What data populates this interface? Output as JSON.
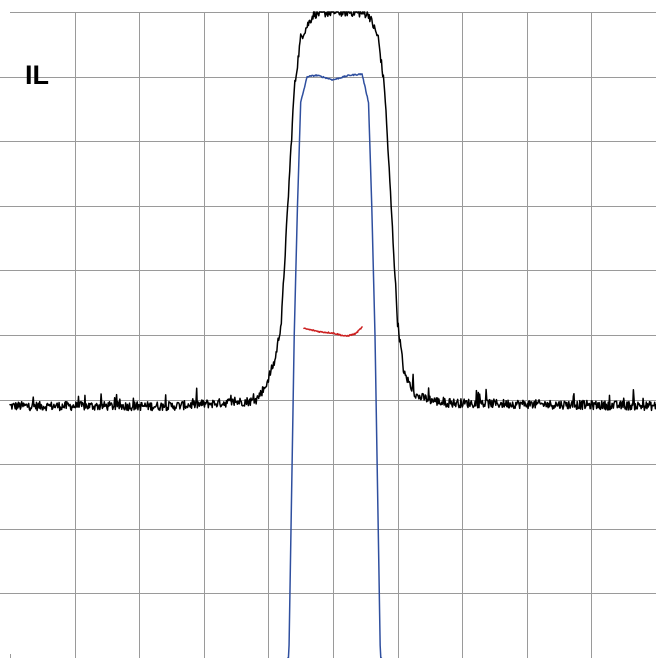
{
  "chart_data": {
    "type": "line",
    "title": "",
    "xlabel": "",
    "ylabel": "",
    "panel_label": "IL",
    "grid": true,
    "x_divisions": 10,
    "y_divisions": 10,
    "xlim": [
      0,
      10
    ],
    "ylim": [
      0,
      10
    ],
    "legend": "none",
    "series": [
      {
        "color": "#000000",
        "baseline": 3.9,
        "noise": 0.07,
        "points": [
          [
            0,
            3.9
          ],
          [
            2.5,
            3.9
          ],
          [
            3.3,
            3.95
          ],
          [
            3.8,
            3.98
          ],
          [
            3.95,
            4.2
          ],
          [
            4.1,
            4.6
          ],
          [
            4.2,
            5.2
          ],
          [
            4.3,
            7.0
          ],
          [
            4.4,
            8.8
          ],
          [
            4.5,
            9.6
          ],
          [
            4.7,
            9.97
          ],
          [
            5.0,
            10.0
          ],
          [
            5.3,
            10.0
          ],
          [
            5.55,
            9.97
          ],
          [
            5.7,
            9.6
          ],
          [
            5.8,
            8.8
          ],
          [
            5.9,
            7.0
          ],
          [
            6.0,
            5.2
          ],
          [
            6.1,
            4.4
          ],
          [
            6.3,
            4.05
          ],
          [
            6.7,
            3.95
          ],
          [
            10,
            3.9
          ]
        ]
      },
      {
        "color": "#2f4f9f",
        "noise": 0.01,
        "points": [
          [
            4.3,
            -1.0
          ],
          [
            4.35,
            2.0
          ],
          [
            4.4,
            5.0
          ],
          [
            4.45,
            7.0
          ],
          [
            4.5,
            8.6
          ],
          [
            4.6,
            9.0
          ],
          [
            4.75,
            9.02
          ],
          [
            5.0,
            8.95
          ],
          [
            5.25,
            9.02
          ],
          [
            5.45,
            9.04
          ],
          [
            5.55,
            8.6
          ],
          [
            5.6,
            7.0
          ],
          [
            5.65,
            5.0
          ],
          [
            5.7,
            2.0
          ],
          [
            5.75,
            -1.0
          ]
        ]
      },
      {
        "color": "#cc2020",
        "noise": 0.01,
        "points": [
          [
            4.55,
            5.1
          ],
          [
            4.8,
            5.05
          ],
          [
            5.0,
            5.03
          ],
          [
            5.2,
            4.98
          ],
          [
            5.35,
            5.02
          ],
          [
            5.45,
            5.12
          ]
        ]
      }
    ]
  }
}
